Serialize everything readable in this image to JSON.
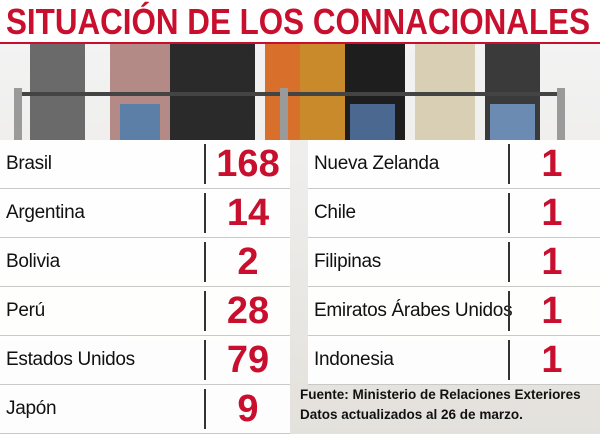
{
  "header": {
    "title": "SITUACIÓN DE LOS CONNACIONALES"
  },
  "left_table": {
    "rows": [
      [
        "Brasil",
        168
      ],
      [
        "Argentina",
        14
      ],
      [
        "Bolivia",
        2
      ],
      [
        "Perú",
        28
      ],
      [
        "Estados Unidos",
        79
      ],
      [
        "Japón",
        9
      ]
    ]
  },
  "right_table": {
    "rows": [
      [
        "Nueva Zelanda",
        1
      ],
      [
        "Chile",
        1
      ],
      [
        "Filipinas",
        1
      ],
      [
        "Emiratos Árabes Unidos",
        1
      ],
      [
        "Indonesia",
        1
      ]
    ]
  },
  "source": {
    "lines": [
      "Fuente: Ministerio de Relaciones Exteriores",
      "Datos actualizados al 26 de marzo."
    ]
  }
}
